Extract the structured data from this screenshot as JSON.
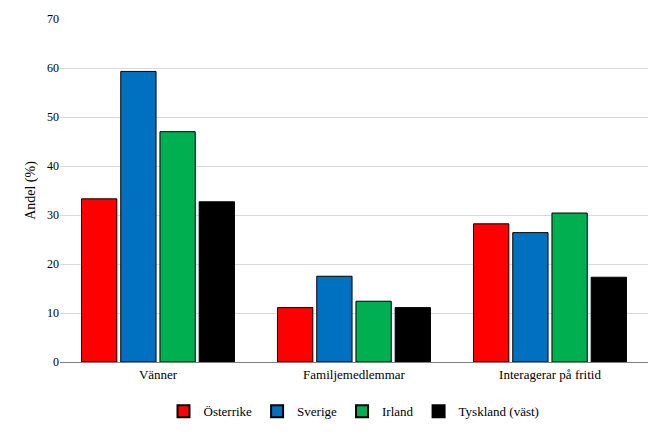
{
  "chart_data": {
    "type": "bar",
    "y_label": "Andel (%)",
    "categories": [
      "Vänner",
      "Familjemedlemmar",
      "Interagerar på fritid"
    ],
    "series": [
      {
        "name": "Österrike",
        "color": "#ff0000",
        "values": [
          33.3,
          11.1,
          28.2
        ]
      },
      {
        "name": "Sverige",
        "color": "#0070c0",
        "values": [
          59.3,
          17.5,
          26.4
        ]
      },
      {
        "name": "Irland",
        "color": "#00b050",
        "values": [
          47.0,
          12.4,
          30.4
        ]
      },
      {
        "name": "Tyskland (väst)",
        "color": "#000000",
        "values": [
          32.7,
          11.1,
          17.3
        ]
      }
    ],
    "ylim": [
      0,
      70
    ],
    "yticks": [
      0,
      10,
      20,
      30,
      40,
      50,
      60,
      70
    ],
    "grid": true,
    "legend": "bottom"
  }
}
